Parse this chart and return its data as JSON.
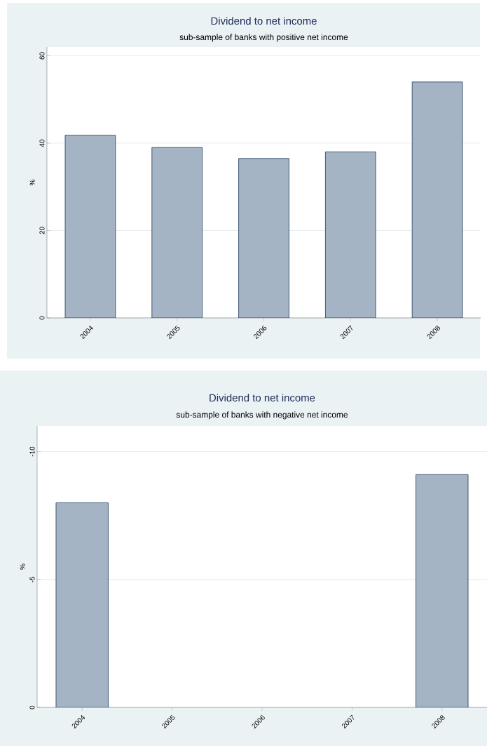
{
  "chart_data": [
    {
      "type": "bar",
      "title": "Dividend to net income",
      "subtitle": "sub-sample of banks with positive net income",
      "ylabel": "%",
      "categories": [
        "2004",
        "2005",
        "2006",
        "2007",
        "2008"
      ],
      "values": [
        41.8,
        39,
        36.5,
        38,
        54
      ],
      "color": "#a5b4c4",
      "ylim": [
        0,
        62
      ],
      "yticks": [
        0,
        20,
        40,
        60
      ],
      "grid": "y"
    },
    {
      "type": "bar",
      "title": "Dividend to net income",
      "subtitle": "sub-sample of banks with negative net income",
      "ylabel": "%",
      "categories": [
        "2004",
        "2005",
        "2006",
        "2007",
        "2008"
      ],
      "values": [
        -8,
        null,
        null,
        null,
        -9.1
      ],
      "color": "#a5b4c4",
      "ylim": [
        0,
        -11
      ],
      "yticks": [
        0,
        -5,
        -10
      ],
      "grid": "y"
    }
  ]
}
